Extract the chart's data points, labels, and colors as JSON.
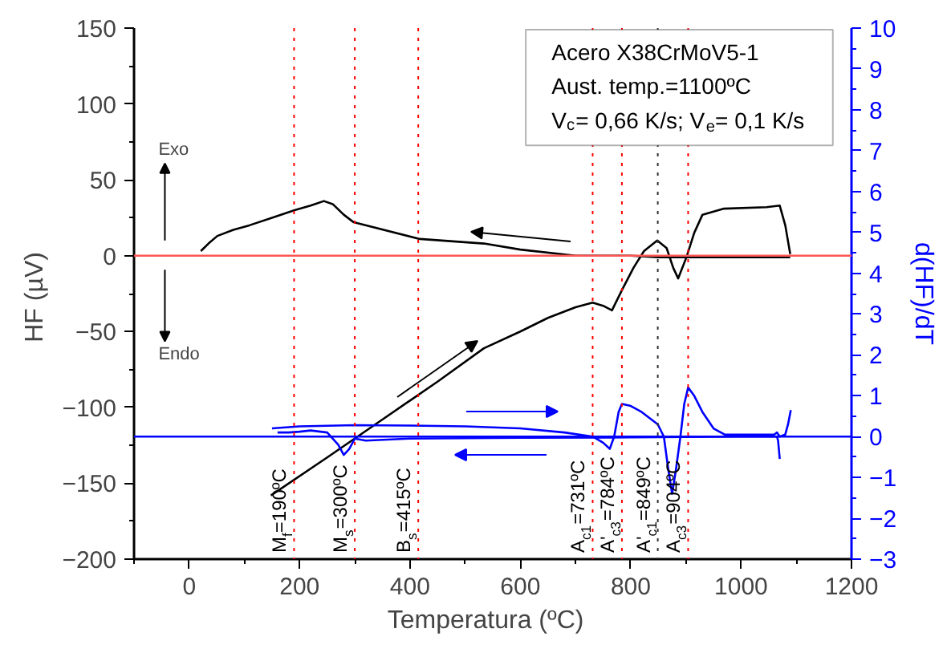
{
  "chart_data": {
    "type": "line",
    "xlabel": "Temperatura   (ºC)",
    "ylabel": "HF  (µV)",
    "y2label": "d(HF)/dT",
    "xlim": [
      -100,
      1200
    ],
    "xticks": [
      0,
      200,
      400,
      600,
      800,
      1000,
      1200
    ],
    "ylim": [
      -200,
      150
    ],
    "yticks": [
      -200,
      -150,
      -100,
      -50,
      0,
      50,
      100,
      150
    ],
    "y2lim": [
      -3,
      10
    ],
    "y2ticks": [
      -3,
      -2,
      -1,
      0,
      1,
      2,
      3,
      4,
      5,
      6,
      7,
      8,
      9,
      10
    ],
    "series": [
      {
        "color": "#000000",
        "x": [
          148,
          250,
          350,
          450,
          534,
          600,
          650,
          700,
          731,
          750,
          766,
          785,
          805,
          824,
          848,
          865,
          877,
          886,
          901,
          915,
          930,
          969,
          1046,
          1070,
          1080,
          1089
        ],
        "values": [
          -158,
          -133,
          -108,
          -83,
          -61,
          -50,
          -41,
          -34,
          -31,
          -33,
          -36,
          -22,
          -8,
          3,
          10,
          5,
          -8,
          -15,
          -1,
          15,
          27,
          31,
          32,
          33,
          20,
          1
        ]
      },
      {
        "color": "#000000",
        "x": [
          1089,
          1000,
          900,
          850,
          800,
          700,
          600,
          534,
          418,
          298,
          280,
          260,
          244,
          220,
          191,
          150,
          109,
          80,
          51,
          35,
          21
        ],
        "values": [
          -1,
          -1,
          -1,
          -1,
          0,
          0,
          4,
          8,
          11,
          22,
          27,
          34,
          36,
          33,
          30,
          25,
          20,
          17,
          13,
          8,
          3
        ]
      },
      {
        "color": "#0000ff",
        "axis": "y2",
        "x": [
          150,
          200,
          300,
          400,
          500,
          600,
          680,
          731,
          750,
          762,
          770,
          778,
          784,
          800,
          820,
          849,
          860,
          868,
          875,
          882,
          890,
          897,
          904,
          915,
          930,
          950,
          970,
          1000,
          1060,
          1065,
          1070,
          1080,
          1085,
          1090
        ],
        "values": [
          0.2,
          0.25,
          0.28,
          0.27,
          0.25,
          0.2,
          0.1,
          0,
          -0.15,
          -0.3,
          0,
          0.6,
          0.8,
          0.75,
          0.6,
          0.3,
          0,
          -0.8,
          -1.4,
          -0.8,
          0,
          0.8,
          1.2,
          1.0,
          0.6,
          0.2,
          0.05,
          0.05,
          0.05,
          0.1,
          0,
          0.05,
          0.3,
          0.65
        ]
      },
      {
        "color": "#0000ff",
        "axis": "y2",
        "x": [
          1070,
          1067,
          1065,
          1000,
          800,
          600,
          400,
          320,
          300,
          290,
          280,
          270,
          250,
          220,
          200,
          180,
          160
        ],
        "values": [
          -0.55,
          -0.1,
          0,
          0,
          -0.02,
          -0.03,
          -0.05,
          -0.1,
          -0.05,
          -0.3,
          -0.45,
          -0.2,
          0.1,
          0.15,
          0.12,
          0.1,
          0.1
        ]
      }
    ],
    "ref_lines": [
      {
        "axis": "y",
        "value": 0,
        "color": "#ff5555"
      },
      {
        "axis": "y2",
        "value": 0,
        "color": "#0000ff"
      },
      {
        "axis": "x",
        "value": 190,
        "label": "M$_{f}$=190ºC",
        "color": "#ff0000",
        "line_style": "dotted"
      },
      {
        "axis": "x",
        "value": 300,
        "label": "M$_{s}$=300ºC",
        "color": "#ff0000",
        "line_style": "dotted"
      },
      {
        "axis": "x",
        "value": 415,
        "label": "B$_{s}$=415ºC",
        "color": "#ff0000",
        "line_style": "dotted"
      },
      {
        "axis": "x",
        "value": 731,
        "label": "A$_{c1}$=731ºC",
        "color": "#ff0000",
        "line_style": "dotted"
      },
      {
        "axis": "x",
        "value": 784,
        "label": "A'$_{c3}$=784ºC",
        "color": "#ff0000",
        "line_style": "dotted"
      },
      {
        "axis": "x",
        "value": 849,
        "label": "A'$_{c1}$=849ºC",
        "color": "#333333",
        "line_style": "dotted"
      },
      {
        "axis": "x",
        "value": 904,
        "label": "A$_{c3}$=904ºC",
        "color": "#ff0000",
        "line_style": "dotted"
      }
    ],
    "annotations": [
      "Acero X38CrMoV5-1",
      "Aust. temp.=1100ºC",
      "V$_{c}$= 0,66 K/s; V$_{e}$= 0,1 K/s",
      "Exo",
      "Endo"
    ]
  }
}
